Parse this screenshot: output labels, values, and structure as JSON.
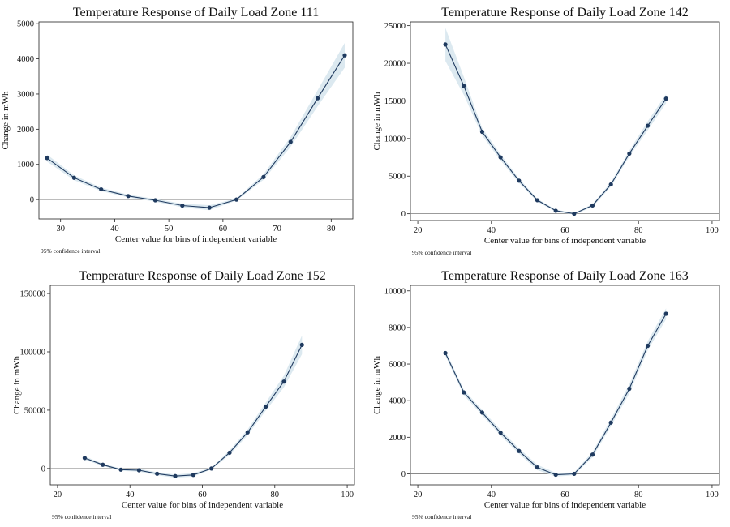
{
  "chart_data": [
    {
      "type": "line",
      "title": "Temperature Response of Daily Load Zone 111",
      "xlabel": "Center value for bins of independent variable",
      "ylabel": "Change in mWh",
      "note": "95% confidence interval",
      "xlim": [
        26,
        84
      ],
      "ylim": [
        -550,
        5050
      ],
      "xticks": [
        30,
        40,
        50,
        60,
        70,
        80
      ],
      "yticks": [
        0,
        1000,
        2000,
        3000,
        4000,
        5000
      ],
      "x": [
        27.5,
        32.5,
        37.5,
        42.5,
        47.5,
        52.5,
        57.5,
        62.5,
        67.5,
        72.5,
        77.5,
        82.5
      ],
      "y": [
        1180,
        620,
        290,
        100,
        -20,
        -170,
        -230,
        0,
        640,
        1640,
        2880,
        4100
      ],
      "ci_lower": [
        1080,
        550,
        240,
        60,
        -60,
        -220,
        -300,
        -30,
        560,
        1500,
        2650,
        3750
      ],
      "ci_upper": [
        1280,
        690,
        340,
        140,
        20,
        -120,
        -160,
        30,
        720,
        1780,
        3110,
        4450
      ]
    },
    {
      "type": "line",
      "title": "Temperature Response of Daily Load Zone 142",
      "xlabel": "Center value for bins of independent variable",
      "ylabel": "Change in mWh",
      "note": "95% confidence interval",
      "xlim": [
        18,
        102
      ],
      "ylim": [
        -900,
        25500
      ],
      "xticks": [
        20,
        40,
        60,
        80,
        100
      ],
      "yticks": [
        0,
        5000,
        10000,
        15000,
        20000,
        25000
      ],
      "x": [
        27.5,
        32.5,
        37.5,
        42.5,
        47.5,
        52.5,
        57.5,
        62.5,
        67.5,
        72.5,
        77.5,
        82.5,
        87.5
      ],
      "y": [
        22500,
        17000,
        10900,
        7500,
        4400,
        1800,
        400,
        0,
        1100,
        3900,
        8000,
        11700,
        15300
      ],
      "ci_lower": [
        20300,
        15800,
        10400,
        7100,
        4100,
        1600,
        250,
        -100,
        900,
        3600,
        7600,
        11100,
        14700
      ],
      "ci_upper": [
        24700,
        18200,
        11400,
        7900,
        4700,
        2000,
        550,
        100,
        1300,
        4200,
        8400,
        12300,
        15900
      ]
    },
    {
      "type": "line",
      "title": "Temperature Response of Daily Load Zone 152",
      "xlabel": "Center value for bins of independent variable",
      "ylabel": "Change in mWh",
      "note": "95% confidence interval",
      "xlim": [
        18,
        102
      ],
      "ylim": [
        -14000,
        157000
      ],
      "xticks": [
        20,
        40,
        60,
        80,
        100
      ],
      "yticks": [
        0,
        50000,
        100000,
        150000
      ],
      "x": [
        27.5,
        32.5,
        37.5,
        42.5,
        47.5,
        52.5,
        57.5,
        62.5,
        67.5,
        72.5,
        77.5,
        82.5,
        87.5
      ],
      "y": [
        9000,
        3200,
        -1000,
        -1500,
        -4500,
        -6500,
        -5500,
        0,
        13500,
        31000,
        53000,
        74500,
        106000
      ],
      "ci_lower": [
        7500,
        2200,
        -2000,
        -2700,
        -5800,
        -7800,
        -7000,
        -800,
        11500,
        28500,
        49500,
        69500,
        98000
      ],
      "ci_upper": [
        10500,
        4200,
        0,
        -300,
        -3200,
        -5200,
        -4000,
        800,
        15500,
        33500,
        56500,
        79500,
        114000
      ]
    },
    {
      "type": "line",
      "title": "Temperature Response of Daily Load Zone 163",
      "xlabel": "Center value for bins of independent variable",
      "ylabel": "Change in mWh",
      "note": "95% confidence interval",
      "xlim": [
        18,
        102
      ],
      "ylim": [
        -600,
        10300
      ],
      "xticks": [
        20,
        40,
        60,
        80,
        100
      ],
      "yticks": [
        0,
        2000,
        4000,
        6000,
        8000,
        10000
      ],
      "x": [
        27.5,
        32.5,
        37.5,
        42.5,
        47.5,
        52.5,
        57.5,
        62.5,
        67.5,
        72.5,
        77.5,
        82.5,
        87.5
      ],
      "y": [
        6600,
        4450,
        3350,
        2250,
        1250,
        350,
        -50,
        0,
        1050,
        2800,
        4650,
        7000,
        8750
      ],
      "ci_lower": [
        6450,
        4300,
        3200,
        2100,
        1100,
        200,
        -150,
        -80,
        900,
        2600,
        4400,
        6750,
        8450
      ],
      "ci_upper": [
        6750,
        4600,
        3500,
        2400,
        1400,
        500,
        50,
        80,
        1200,
        3000,
        4900,
        7250,
        9050
      ]
    }
  ],
  "style": {
    "line_color": "#1f3a5f",
    "marker_color": "#1f3a5f",
    "ci_fill": "#d8e7ee",
    "zero_line_color": "#7a7a7a",
    "frame_color": "#222222"
  }
}
